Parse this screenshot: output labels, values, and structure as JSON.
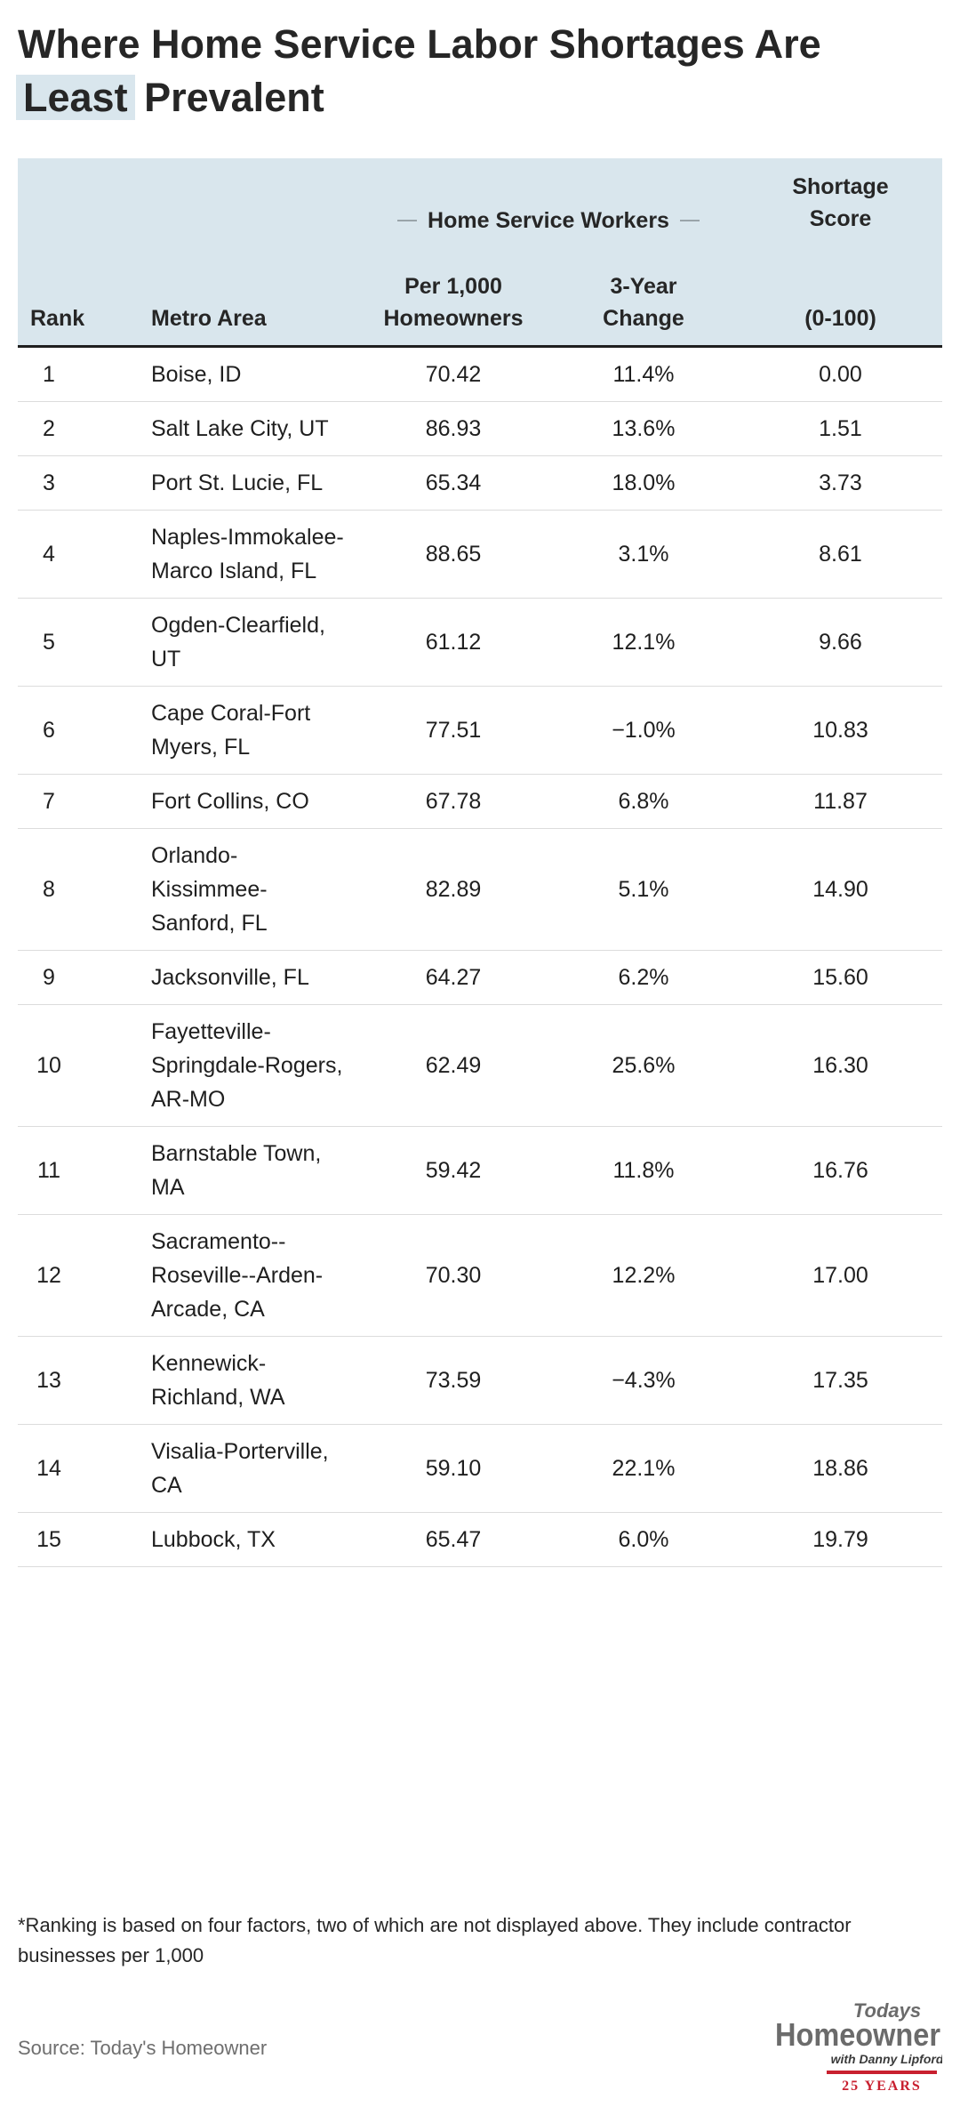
{
  "title": {
    "before": "Where Home Service Labor Shortages Are",
    "highlight": "Least",
    "after": "Prevalent"
  },
  "chart_data": {
    "type": "table",
    "group_header": "Home Service Workers",
    "columns": {
      "rank": "Rank",
      "metro": "Metro Area",
      "per_line1": "Per 1,000",
      "per_line2": "Homeowners",
      "change_line1": "3-Year",
      "change_line2": "Change",
      "score_line1": "Shortage",
      "score_line2": "Score",
      "score_range": "(0-100)"
    },
    "rows": [
      {
        "rank": "1",
        "metro": "Boise, ID",
        "per_1000": "70.42",
        "change": "11.4%",
        "score": "0.00"
      },
      {
        "rank": "2",
        "metro": "Salt Lake City, UT",
        "per_1000": "86.93",
        "change": "13.6%",
        "score": "1.51"
      },
      {
        "rank": "3",
        "metro": "Port St. Lucie, FL",
        "per_1000": "65.34",
        "change": "18.0%",
        "score": "3.73"
      },
      {
        "rank": "4",
        "metro": "Naples-Immokalee-Marco Island, FL",
        "per_1000": "88.65",
        "change": "3.1%",
        "score": "8.61"
      },
      {
        "rank": "5",
        "metro": "Ogden-Clearfield, UT",
        "per_1000": "61.12",
        "change": "12.1%",
        "score": "9.66"
      },
      {
        "rank": "6",
        "metro": "Cape Coral-Fort Myers, FL",
        "per_1000": "77.51",
        "change": "−1.0%",
        "score": "10.83"
      },
      {
        "rank": "7",
        "metro": "Fort Collins, CO",
        "per_1000": "67.78",
        "change": "6.8%",
        "score": "11.87"
      },
      {
        "rank": "8",
        "metro": "Orlando-Kissimmee-Sanford, FL",
        "per_1000": "82.89",
        "change": "5.1%",
        "score": "14.90"
      },
      {
        "rank": "9",
        "metro": "Jacksonville, FL",
        "per_1000": "64.27",
        "change": "6.2%",
        "score": "15.60"
      },
      {
        "rank": "10",
        "metro": "Fayetteville-Springdale-Rogers, AR-MO",
        "per_1000": "62.49",
        "change": "25.6%",
        "score": "16.30"
      },
      {
        "rank": "11",
        "metro": "Barnstable Town, MA",
        "per_1000": "59.42",
        "change": "11.8%",
        "score": "16.76"
      },
      {
        "rank": "12",
        "metro": "Sacramento--Roseville--Arden-Arcade, CA",
        "per_1000": "70.30",
        "change": "12.2%",
        "score": "17.00"
      },
      {
        "rank": "13",
        "metro": "Kennewick-Richland, WA",
        "per_1000": "73.59",
        "change": "−4.3%",
        "score": "17.35"
      },
      {
        "rank": "14",
        "metro": "Visalia-Porterville, CA",
        "per_1000": "59.10",
        "change": "22.1%",
        "score": "18.86"
      },
      {
        "rank": "15",
        "metro": "Lubbock, TX",
        "per_1000": "65.47",
        "change": "6.0%",
        "score": "19.79"
      }
    ]
  },
  "footnote": "*Ranking is based on four factors, two of which are not displayed above. They include contractor businesses per 1,000",
  "source": "Source: Today's Homeowner",
  "logo": {
    "line1": "Todays",
    "line2": "Homeowner",
    "line3": "with Danny Lipford",
    "line4": "25 YEARS",
    "accent": "#c8202f",
    "text_color": "#6b6b6b"
  }
}
